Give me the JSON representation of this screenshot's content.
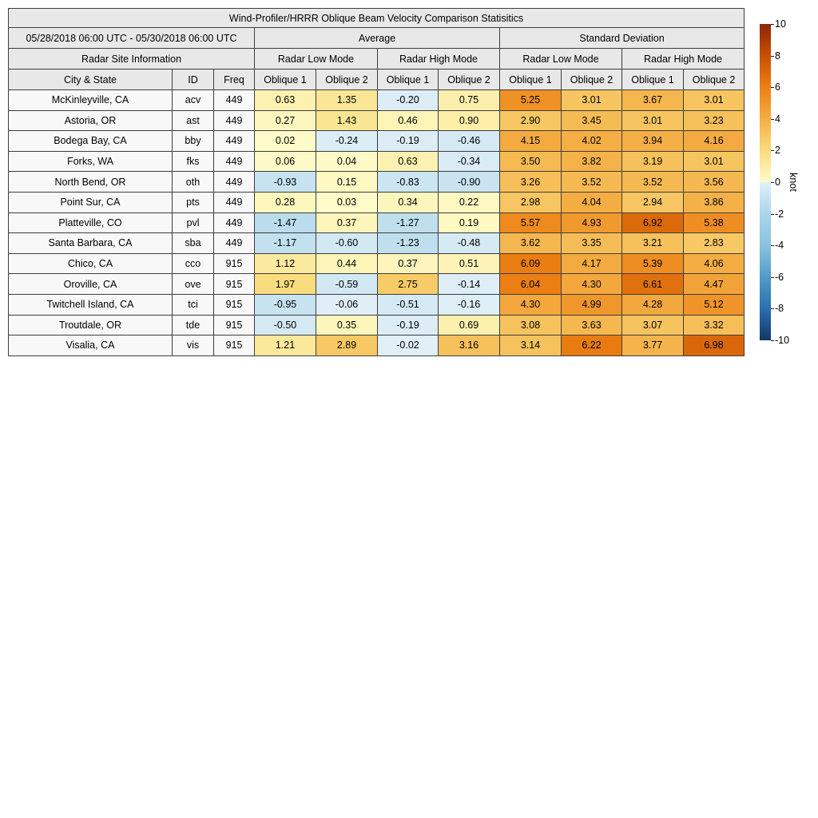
{
  "title": "Wind-Profiler/HRRR Oblique Beam Velocity Comparison Statisitics",
  "table": {
    "date_range": "05/28/2018 06:00 UTC - 05/30/2018 06:00 UTC",
    "groups": {
      "average": "Average",
      "std_dev": "Standard Deviation",
      "site_info": "Radar Site Information",
      "low_mode_avg": "Radar Low Mode",
      "high_mode_avg": "Radar High Mode",
      "low_mode_std": "Radar Low Mode",
      "high_mode_std": "Radar High Mode"
    },
    "columns": [
      "City & State",
      "ID",
      "Freq",
      "Oblique 1",
      "Oblique 2",
      "Oblique 1",
      "Oblique 2",
      "Oblique 1",
      "Oblique 2",
      "Oblique 1",
      "Oblique 2"
    ]
  },
  "chart_data": {
    "type": "table",
    "title": "Wind-Profiler/HRRR Oblique Beam Velocity Comparison Statisitics",
    "value_columns": [
      "Average Radar Low Mode Oblique 1",
      "Average Radar Low Mode Oblique 2",
      "Average Radar High Mode Oblique 1",
      "Average Radar High Mode Oblique 2",
      "Std Dev Radar Low Mode Oblique 1",
      "Std Dev Radar Low Mode Oblique 2",
      "Std Dev Radar High Mode Oblique 1",
      "Std Dev Radar High Mode Oblique 2"
    ],
    "rows": [
      {
        "city": "McKinleyville, CA",
        "id": "acv",
        "freq": "449",
        "values": [
          0.63,
          1.35,
          -0.2,
          0.75,
          5.25,
          3.01,
          3.67,
          3.01
        ]
      },
      {
        "city": "Astoria, OR",
        "id": "ast",
        "freq": "449",
        "values": [
          0.27,
          1.43,
          0.46,
          0.9,
          2.9,
          3.45,
          3.01,
          3.23
        ]
      },
      {
        "city": "Bodega Bay, CA",
        "id": "bby",
        "freq": "449",
        "values": [
          0.02,
          -0.24,
          -0.19,
          -0.46,
          4.15,
          4.02,
          3.94,
          4.16
        ]
      },
      {
        "city": "Forks, WA",
        "id": "fks",
        "freq": "449",
        "values": [
          0.06,
          0.04,
          0.63,
          -0.34,
          3.5,
          3.82,
          3.19,
          3.01
        ]
      },
      {
        "city": "North Bend, OR",
        "id": "oth",
        "freq": "449",
        "values": [
          -0.93,
          0.15,
          -0.83,
          -0.9,
          3.26,
          3.52,
          3.52,
          3.56
        ]
      },
      {
        "city": "Point Sur, CA",
        "id": "pts",
        "freq": "449",
        "values": [
          0.28,
          0.03,
          0.34,
          0.22,
          2.98,
          4.04,
          2.94,
          3.86
        ]
      },
      {
        "city": "Platteville, CO",
        "id": "pvl",
        "freq": "449",
        "values": [
          -1.47,
          0.37,
          -1.27,
          0.19,
          5.57,
          4.93,
          6.92,
          5.38
        ]
      },
      {
        "city": "Santa Barbara, CA",
        "id": "sba",
        "freq": "449",
        "values": [
          -1.17,
          -0.6,
          -1.23,
          -0.48,
          3.62,
          3.35,
          3.21,
          2.83
        ]
      },
      {
        "city": "Chico, CA",
        "id": "cco",
        "freq": "915",
        "values": [
          1.12,
          0.44,
          0.37,
          0.51,
          6.09,
          4.17,
          5.39,
          4.06
        ]
      },
      {
        "city": "Oroville, CA",
        "id": "ove",
        "freq": "915",
        "values": [
          1.97,
          -0.59,
          2.75,
          -0.14,
          6.04,
          4.3,
          6.61,
          4.47
        ]
      },
      {
        "city": "Twitchell Island, CA",
        "id": "tci",
        "freq": "915",
        "values": [
          -0.95,
          -0.06,
          -0.51,
          -0.16,
          4.3,
          4.99,
          4.28,
          5.12
        ]
      },
      {
        "city": "Troutdale, OR",
        "id": "tde",
        "freq": "915",
        "values": [
          -0.5,
          0.35,
          -0.19,
          0.69,
          3.08,
          3.63,
          3.07,
          3.32
        ]
      },
      {
        "city": "Visalia, CA",
        "id": "vis",
        "freq": "915",
        "values": [
          1.21,
          2.89,
          -0.02,
          3.16,
          3.14,
          6.22,
          3.77,
          6.98
        ]
      }
    ],
    "colorbar": {
      "label": "knot",
      "min": -10,
      "max": 10,
      "ticks": [
        10,
        8,
        6,
        4,
        2,
        0,
        -2,
        -4,
        -6,
        -8,
        -10
      ]
    }
  },
  "colormap": {
    "stops": [
      {
        "v": -10,
        "c": "#123768"
      },
      {
        "v": -8,
        "c": "#2b6fb0"
      },
      {
        "v": -6,
        "c": "#539bc7"
      },
      {
        "v": -4,
        "c": "#8ac2de"
      },
      {
        "v": -2,
        "c": "#abd5e8"
      },
      {
        "v": -0.001,
        "c": "#e2f0f7"
      },
      {
        "v": 0.001,
        "c": "#fefbc9"
      },
      {
        "v": 2,
        "c": "#f9dc7d"
      },
      {
        "v": 4,
        "c": "#f4ae44"
      },
      {
        "v": 6,
        "c": "#ec8013"
      },
      {
        "v": 8,
        "c": "#c85002"
      },
      {
        "v": 10,
        "c": "#8c2507"
      }
    ]
  }
}
